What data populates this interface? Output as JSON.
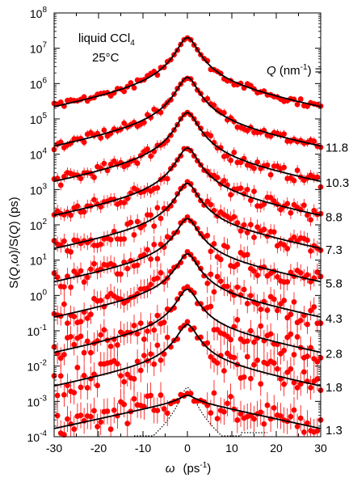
{
  "chart_data": {
    "type": "line",
    "ylog": true,
    "xlim": [
      -30,
      30
    ],
    "ylim_exp": [
      -4,
      8
    ],
    "xticks": [
      -30,
      -20,
      -10,
      0,
      10,
      20,
      30
    ],
    "yticks_exp": [
      -4,
      -3,
      -2,
      -1,
      0,
      1,
      2,
      3,
      4,
      5,
      6,
      7,
      8
    ],
    "xlabel": {
      "sym": "ω",
      "unit_open": "(ps",
      "unit_exp": "-1",
      "unit_close": ")"
    },
    "ylabel": {
      "a": "S(",
      "b": "Q",
      "c": ",",
      "d": "ω",
      "e": ")/",
      "f": "S(",
      "g": "Q",
      "h": ")  (ps)"
    },
    "annotation": {
      "line1": "liquid CCl",
      "sub": "4",
      "line2": "25°C"
    },
    "q_header": {
      "q": "Q",
      "open": " (nm",
      "exp": "-1",
      "close": ") ="
    },
    "colors": {
      "data": "#ff0000",
      "fit": "#000000",
      "resolution": "#000000"
    },
    "series": [
      {
        "q_label": "1.3",
        "peak": 0.0015,
        "wing": 0.0011
      },
      {
        "q_label": "1.8",
        "peak": 0.15,
        "wing": 0.014
      },
      {
        "q_label": "2.8",
        "peak": 1.5,
        "wing": 0.12
      },
      {
        "q_label": "4.3",
        "peak": 15,
        "wing": 1.2
      },
      {
        "q_label": "5.8",
        "peak": 150,
        "wing": 12
      },
      {
        "q_label": "7.3",
        "peak": 1500,
        "wing": 100
      },
      {
        "q_label": "8.8",
        "peak": 15000,
        "wing": 800
      },
      {
        "q_label": "10.3",
        "peak": 150000,
        "wing": 7000
      },
      {
        "q_label": "11.8",
        "peak": 1500000,
        "wing": 70000
      },
      {
        "q_label": "",
        "peak": 20000000,
        "wing": 900000
      }
    ],
    "resolution": {
      "peak": 0.0025,
      "floor": 0.0001
    }
  }
}
